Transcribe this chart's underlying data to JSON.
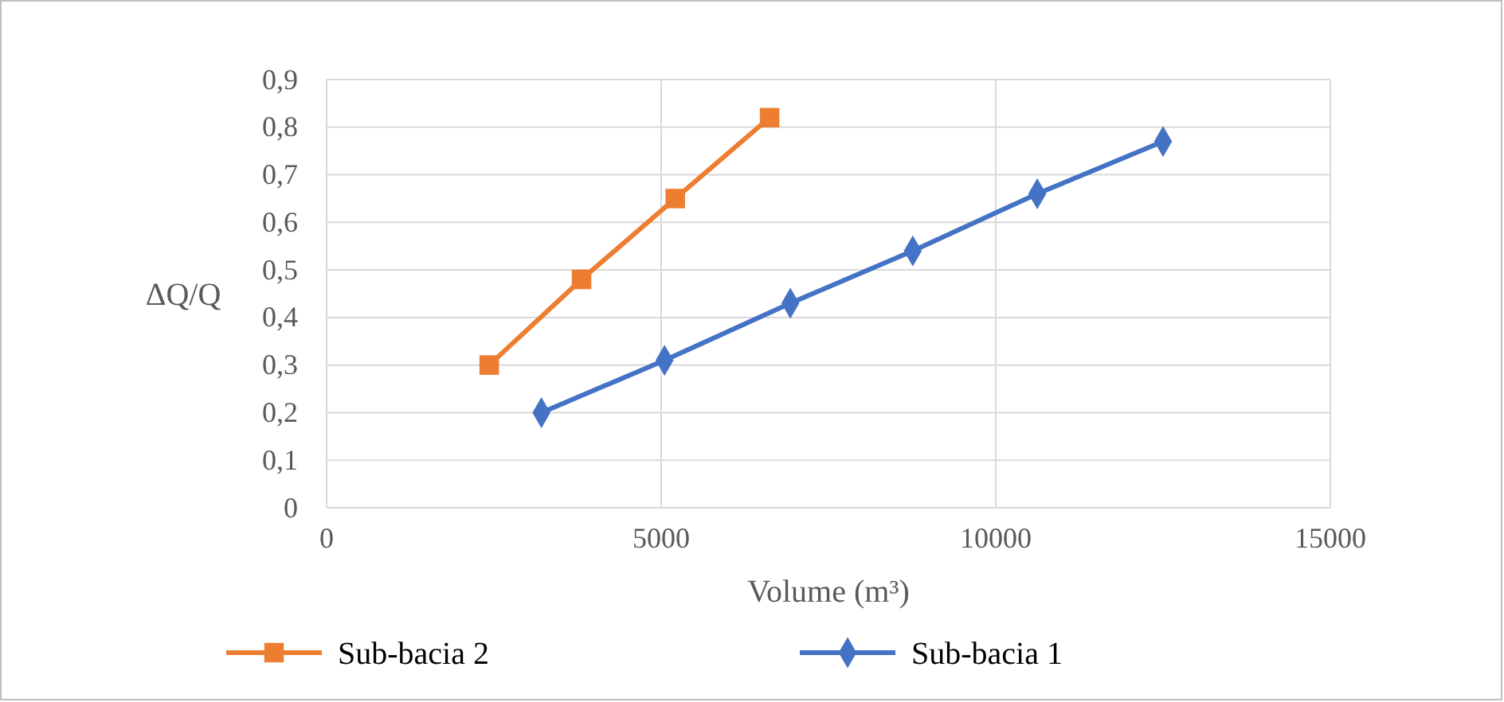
{
  "chart_data": {
    "type": "line",
    "xlabel": "Volume (m³)",
    "ylabel": "ΔQ/Q",
    "xlim": [
      0,
      15000
    ],
    "xticks": [
      0,
      5000,
      10000,
      15000
    ],
    "ylim": [
      0,
      0.9
    ],
    "yticks": [
      {
        "value": 0,
        "label": "0"
      },
      {
        "value": 0.1,
        "label": "0,1"
      },
      {
        "value": 0.2,
        "label": "0,2"
      },
      {
        "value": 0.3,
        "label": "0,3"
      },
      {
        "value": 0.4,
        "label": "0,4"
      },
      {
        "value": 0.5,
        "label": "0,5"
      },
      {
        "value": 0.6,
        "label": "0,6"
      },
      {
        "value": 0.7,
        "label": "0,7"
      },
      {
        "value": 0.8,
        "label": "0,8"
      },
      {
        "value": 0.9,
        "label": "0,9"
      }
    ],
    "grid": true,
    "legend": "bottom",
    "line_style": "solid",
    "series": [
      {
        "name": "Sub-bacia 2",
        "color": "#ed7d31",
        "marker": "square",
        "x": [
          2430,
          3810,
          5210,
          6620
        ],
        "values": [
          0.3,
          0.48,
          0.65,
          0.82
        ]
      },
      {
        "name": "Sub-bacia 1",
        "color": "#4472c4",
        "marker": "diamond",
        "x": [
          3210,
          5050,
          6930,
          8760,
          10620,
          12500
        ],
        "values": [
          0.2,
          0.31,
          0.43,
          0.54,
          0.66,
          0.77
        ]
      }
    ]
  }
}
